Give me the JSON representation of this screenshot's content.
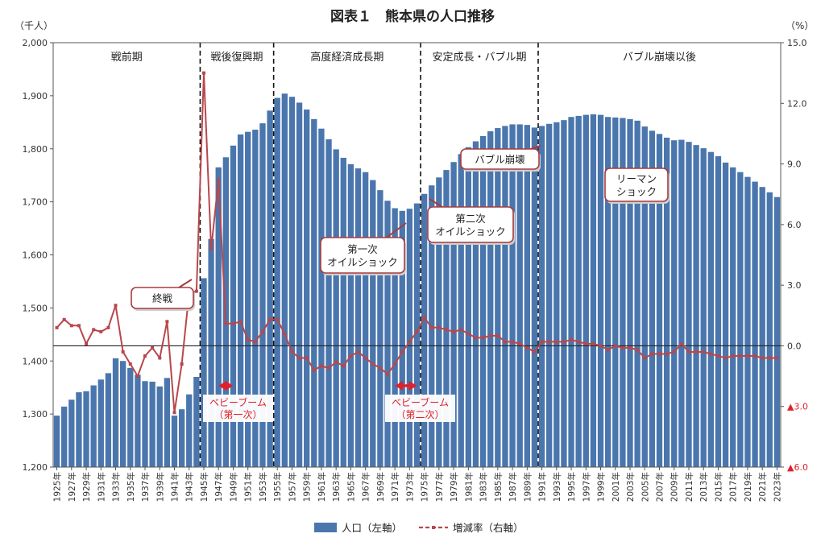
{
  "chart_data": {
    "type": "bar+line",
    "title": "図表１　熊本県の人口推移",
    "left_axis": {
      "unit": "（千人）",
      "min": 1200,
      "max": 2000,
      "ticks": [
        "1,200",
        "1,300",
        "1,400",
        "1,500",
        "1,600",
        "1,700",
        "1,800",
        "1,900",
        "2,000"
      ],
      "tick_values": [
        1200,
        1300,
        1400,
        1500,
        1600,
        1700,
        1800,
        1900,
        2000
      ]
    },
    "right_axis": {
      "unit": "（%）",
      "min": -6,
      "max": 15,
      "ticks": [
        "▲6.0",
        "▲3.0",
        "0.0",
        "3.0",
        "6.0",
        "9.0",
        "12.0",
        "15.0"
      ],
      "tick_values": [
        -6,
        -3,
        0,
        3,
        6,
        9,
        12,
        15
      ],
      "negative_color": "#e0202a"
    },
    "years": [
      1925,
      1926,
      1927,
      1928,
      1929,
      1930,
      1931,
      1932,
      1933,
      1934,
      1935,
      1936,
      1937,
      1938,
      1939,
      1940,
      1941,
      1942,
      1943,
      1944,
      1945,
      1946,
      1947,
      1948,
      1949,
      1950,
      1951,
      1952,
      1953,
      1954,
      1955,
      1956,
      1957,
      1958,
      1959,
      1960,
      1961,
      1962,
      1963,
      1964,
      1965,
      1966,
      1967,
      1968,
      1969,
      1970,
      1971,
      1972,
      1973,
      1974,
      1975,
      1976,
      1977,
      1978,
      1979,
      1980,
      1981,
      1982,
      1983,
      1984,
      1985,
      1986,
      1987,
      1988,
      1989,
      1990,
      1991,
      1992,
      1993,
      1994,
      1995,
      1996,
      1997,
      1998,
      1999,
      2000,
      2001,
      2002,
      2003,
      2004,
      2005,
      2006,
      2007,
      2008,
      2009,
      2010,
      2011,
      2012,
      2013,
      2014,
      2015,
      2016,
      2017,
      2018,
      2019,
      2020,
      2021,
      2022,
      2023
    ],
    "year_labels": [
      "1925年",
      "1927年",
      "1929年",
      "1931年",
      "1933年",
      "1935年",
      "1937年",
      "1939年",
      "1941年",
      "1943年",
      "1945年",
      "1947年",
      "1949年",
      "1951年",
      "1953年",
      "1955年",
      "1957年",
      "1959年",
      "1961年",
      "1963年",
      "1965年",
      "1967年",
      "1969年",
      "1971年",
      "1973年",
      "1975年",
      "1977年",
      "1979年",
      "1981年",
      "1983年",
      "1985年",
      "1987年",
      "1989年",
      "1991年",
      "1993年",
      "1995年",
      "1997年",
      "1999年",
      "2001年",
      "2003年",
      "2005年",
      "2007年",
      "2009年",
      "2011年",
      "2013年",
      "2015年",
      "2017年",
      "2019年",
      "2021年",
      "2023年"
    ],
    "series": [
      {
        "name": "人口（左軸）",
        "kind": "bar",
        "color": "#4a76ad",
        "values": [
          1297,
          1314,
          1327,
          1341,
          1343,
          1354,
          1365,
          1377,
          1405,
          1400,
          1387,
          1374,
          1362,
          1361,
          1352,
          1368,
          1297,
          1309,
          1337,
          1370,
          1556,
          1630,
          1765,
          1784,
          1806,
          1827,
          1832,
          1836,
          1848,
          1872,
          1896,
          1904,
          1898,
          1887,
          1874,
          1856,
          1838,
          1818,
          1799,
          1783,
          1771,
          1763,
          1756,
          1741,
          1722,
          1702,
          1688,
          1683,
          1687,
          1697,
          1715,
          1731,
          1746,
          1760,
          1775,
          1790,
          1803,
          1814,
          1824,
          1833,
          1839,
          1843,
          1846,
          1846,
          1845,
          1840,
          1843,
          1847,
          1850,
          1854,
          1860,
          1862,
          1864,
          1865,
          1864,
          1860,
          1859,
          1858,
          1856,
          1853,
          1842,
          1834,
          1828,
          1821,
          1816,
          1817,
          1813,
          1807,
          1801,
          1794,
          1786,
          1774,
          1765,
          1756,
          1747,
          1738,
          1728,
          1718,
          1709
        ]
      },
      {
        "name": "増減率（右軸）",
        "kind": "line",
        "color": "#b8474c",
        "values": [
          0.9,
          1.3,
          1.0,
          1.0,
          0.1,
          0.8,
          0.7,
          0.9,
          2.0,
          -0.3,
          -0.9,
          -1.5,
          -0.5,
          -0.1,
          -0.6,
          1.2,
          -3.3,
          -0.9,
          2.6,
          2.7,
          13.5,
          4.8,
          8.2,
          1.1,
          1.1,
          1.2,
          0.3,
          0.2,
          0.7,
          1.3,
          1.3,
          0.6,
          -0.3,
          -0.6,
          -0.6,
          -1.2,
          -1.0,
          -1.1,
          -0.8,
          -1.0,
          -0.5,
          -0.3,
          -0.6,
          -0.9,
          -1.1,
          -1.4,
          -0.9,
          -0.3,
          0.2,
          0.7,
          1.4,
          0.9,
          0.9,
          0.8,
          0.7,
          0.8,
          0.6,
          0.4,
          0.4,
          0.5,
          0.5,
          0.2,
          0.2,
          0.1,
          -0.1,
          -0.3,
          0.2,
          0.2,
          0.2,
          0.2,
          0.3,
          0.2,
          0.1,
          0.1,
          0.0,
          -0.2,
          0.0,
          -0.1,
          -0.1,
          -0.2,
          -0.6,
          -0.4,
          -0.4,
          -0.4,
          -0.3,
          0.1,
          -0.3,
          -0.3,
          -0.3,
          -0.4,
          -0.5,
          -0.6,
          -0.5,
          -0.5,
          -0.5,
          -0.5,
          -0.6,
          -0.6,
          -0.6
        ]
      }
    ],
    "periods": [
      {
        "label": "戦前期",
        "start": 1925,
        "end": 1944
      },
      {
        "label": "戦後復興期",
        "start": 1945,
        "end": 1954
      },
      {
        "label": "高度経済成長期",
        "start": 1955,
        "end": 1974
      },
      {
        "label": "安定成長・バブル期",
        "start": 1975,
        "end": 1990
      },
      {
        "label": "バブル崩壊以後",
        "start": 1991,
        "end": 2023
      }
    ],
    "annotations": [
      {
        "id": "end-of-war",
        "text": [
          "終戦"
        ],
        "year": 1945
      },
      {
        "id": "oil-shock-1",
        "text": [
          "第一次",
          "オイルショック"
        ],
        "year": 1973
      },
      {
        "id": "oil-shock-2",
        "text": [
          "第二次",
          "オイルショック"
        ],
        "year": 1979
      },
      {
        "id": "bubble-burst",
        "text": [
          "バブル崩壊"
        ],
        "year": 1991
      },
      {
        "id": "lehman-shock",
        "text": [
          "リーマン",
          "ショック"
        ],
        "year": 2008
      }
    ],
    "baby_booms": [
      {
        "text": [
          "ベビーブーム",
          "（第一次）"
        ],
        "start": 1947,
        "end": 1949,
        "color": "#e0202a"
      },
      {
        "text": [
          "ベビーブーム",
          "（第二次）"
        ],
        "start": 1971,
        "end": 1974,
        "color": "#e0202a"
      }
    ],
    "legend": [
      {
        "label": "人口（左軸）",
        "kind": "bar"
      },
      {
        "label": "増減率（右軸）",
        "kind": "line"
      }
    ]
  }
}
